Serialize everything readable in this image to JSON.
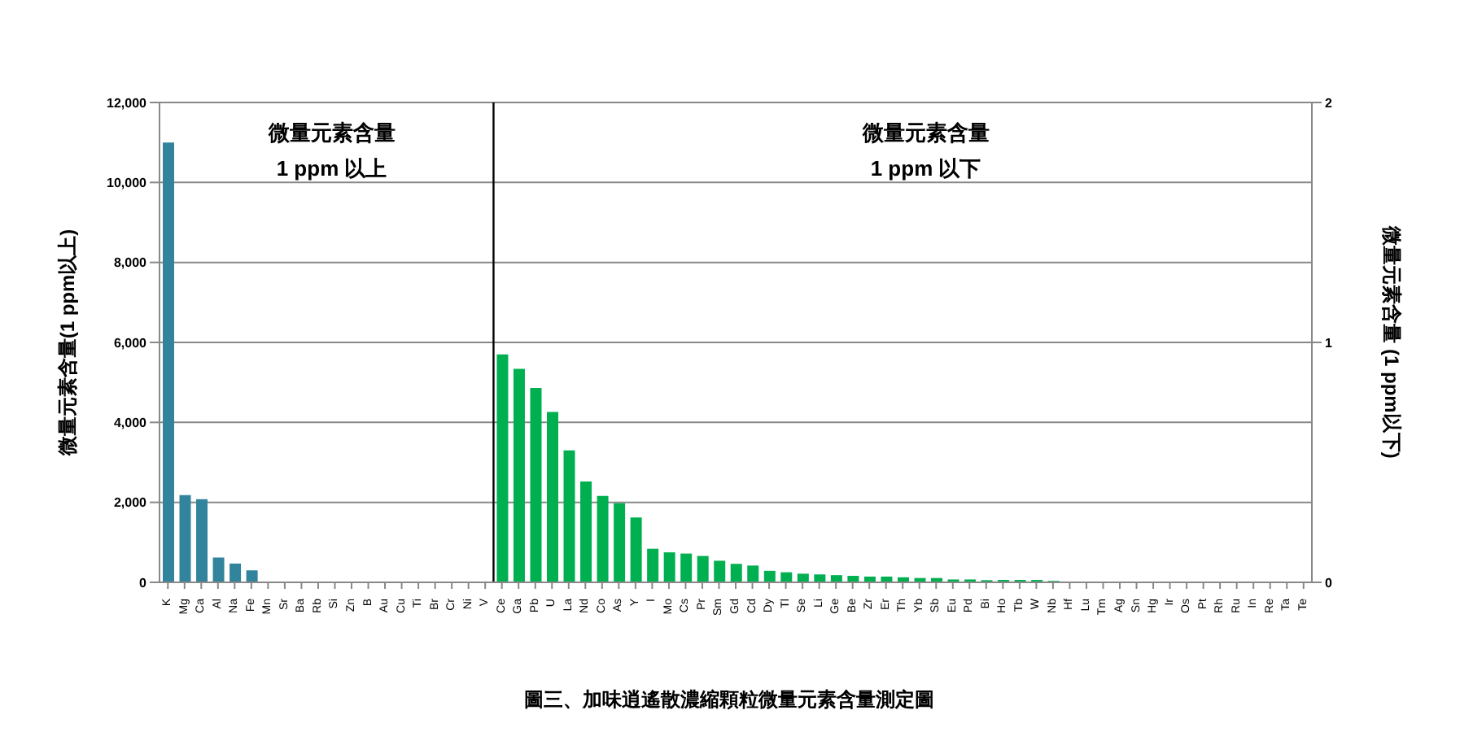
{
  "chart_data": {
    "type": "bar",
    "title": "圖三、加味逍遙散濃縮顆粒微量元素含量測定圖",
    "ylabel": "微量元素含量(1 ppm以上)",
    "y2label": "微量元素含量 (1 ppm以下)",
    "annotations": [
      "微量元素含量",
      "1 ppm 以上",
      "微量元素含量",
      "1 ppm 以下"
    ],
    "categories": [
      "K",
      "Mg",
      "Ca",
      "Al",
      "Na",
      "Fe",
      "Mn",
      "Sr",
      "Ba",
      "Rb",
      "Si",
      "Zn",
      "B",
      "Au",
      "Cu",
      "Ti",
      "Br",
      "Cr",
      "Ni",
      "V",
      "Ce",
      "Ga",
      "Pb",
      "U",
      "La",
      "Nd",
      "Co",
      "As",
      "Y",
      "I",
      "Mo",
      "Cs",
      "Pr",
      "Sm",
      "Gd",
      "Cd",
      "Dy",
      "Tl",
      "Se",
      "Li",
      "Ge",
      "Be",
      "Zr",
      "Er",
      "Th",
      "Yb",
      "Sb",
      "Eu",
      "Pd",
      "Bi",
      "Ho",
      "Tb",
      "W",
      "Nb",
      "Hf",
      "Lu",
      "Tm",
      "Ag",
      "Sn",
      "Hg",
      "Ir",
      "Os",
      "Pt",
      "Rh",
      "Ru",
      "In",
      "Re",
      "Ta",
      "Te"
    ],
    "series": [
      {
        "color": "#31849b",
        "values": [
          11000,
          2180,
          2080,
          620,
          470,
          300,
          20,
          0,
          0,
          0,
          0,
          0,
          0,
          0,
          0,
          0,
          0,
          0,
          0,
          0,
          null,
          null,
          null,
          null,
          null,
          null,
          null,
          null,
          null,
          null,
          null,
          null,
          null,
          null,
          null,
          null,
          null,
          null,
          null,
          null,
          null,
          null,
          null,
          null,
          null,
          null,
          null,
          null,
          null,
          null,
          null,
          null,
          null,
          null,
          null,
          null,
          null,
          null,
          null,
          null,
          null,
          null,
          null,
          null,
          null,
          null,
          null,
          null,
          null
        ]
      },
      {
        "color": "#00b050",
        "axis": "y2",
        "values": [
          null,
          null,
          null,
          null,
          null,
          null,
          null,
          null,
          null,
          null,
          null,
          null,
          null,
          null,
          null,
          null,
          null,
          null,
          null,
          null,
          0.95,
          0.89,
          0.81,
          0.71,
          0.55,
          0.42,
          0.36,
          0.33,
          0.27,
          0.14,
          0.125,
          0.12,
          0.11,
          0.09,
          0.077,
          0.07,
          0.048,
          0.042,
          0.036,
          0.033,
          0.03,
          0.027,
          0.024,
          0.024,
          0.021,
          0.018,
          0.018,
          0.012,
          0.012,
          0.009,
          0.01,
          0.01,
          0.01,
          0.006,
          0,
          0,
          0,
          0,
          0,
          0,
          0,
          0,
          0,
          0,
          0,
          0,
          0,
          0,
          0
        ]
      }
    ],
    "ref_lines": [
      {
        "axis": "x",
        "value": "Ce",
        "color": "#000000"
      }
    ],
    "ylim": [
      0,
      12000
    ],
    "yticks": [
      0,
      {
        "value": 2000,
        "label": "2,000"
      },
      {
        "value": 4000,
        "label": "4,000"
      },
      {
        "value": 6000,
        "label": "6,000"
      },
      {
        "value": 8000,
        "label": "8,000"
      },
      {
        "value": 10000,
        "label": "10,000"
      },
      {
        "value": 12000,
        "label": "12,000"
      }
    ],
    "y2lim": [
      0,
      2
    ],
    "y2ticks": [
      0,
      1,
      2
    ],
    "grid": "y",
    "legend": false
  }
}
